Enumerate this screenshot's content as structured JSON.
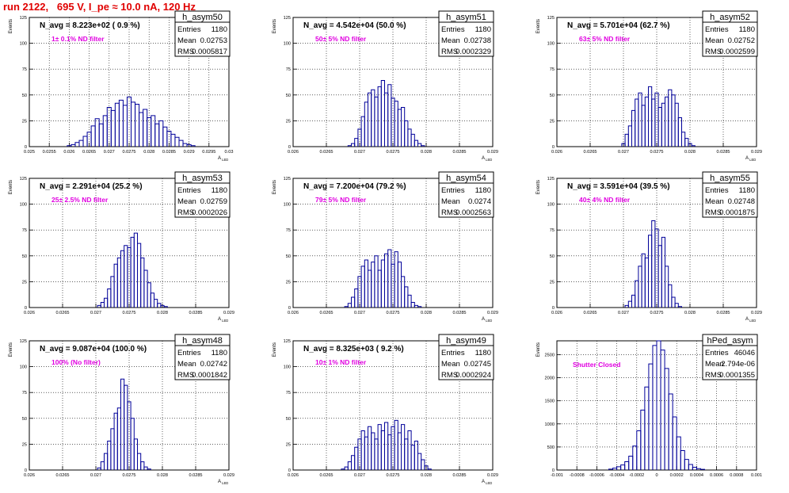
{
  "page": {
    "title": "run 2122,   695 V, I_pe ≈ 10.0 nA, 120 Hz"
  },
  "colors": {
    "title": "#e00000",
    "annotation": "#e000e0",
    "histogram": "#000099",
    "grid": "#000000"
  },
  "chart_data": [
    {
      "type": "histogram",
      "name": "h_asym50",
      "stats": {
        "entries": "1180",
        "mean": "0.02753",
        "rms": "0.0005817"
      },
      "n_avg_label": "N_avg = 8.223e+02 ( 0.9 %)",
      "annotation": "1± 0.1% ND filter",
      "ylabel": "Events",
      "xlabel": "A_LED",
      "xlim": [
        0.025,
        0.03
      ],
      "ylim": [
        0,
        125
      ],
      "xticks": [
        0.025,
        0.0255,
        0.026,
        0.0265,
        0.027,
        0.0275,
        0.028,
        0.0285,
        0.029,
        0.0295,
        0.03
      ],
      "xtick_labels": [
        "0.025",
        "0.0255",
        "0.026",
        "0.0265",
        "0.027",
        "0.0275",
        "0.028",
        "0.0285",
        "0.029",
        "0.0295",
        "0.03"
      ],
      "yticks": [
        0,
        25,
        50,
        75,
        100,
        125
      ],
      "ytick_labels": [
        "0",
        "25",
        "50",
        "75",
        "100",
        "125"
      ],
      "x": [
        0.026,
        0.0261,
        0.0262,
        0.0263,
        0.0264,
        0.0265,
        0.0266,
        0.0267,
        0.0268,
        0.0269,
        0.027,
        0.0271,
        0.0272,
        0.0273,
        0.0274,
        0.0275,
        0.0276,
        0.0277,
        0.0278,
        0.0279,
        0.028,
        0.0281,
        0.0282,
        0.0283,
        0.0284,
        0.0285,
        0.0286,
        0.0287,
        0.0288,
        0.0289,
        0.029,
        0.0291
      ],
      "y": [
        1,
        2,
        4,
        6,
        10,
        14,
        20,
        27,
        22,
        30,
        38,
        35,
        42,
        45,
        40,
        48,
        43,
        41,
        33,
        36,
        28,
        30,
        22,
        25,
        19,
        15,
        12,
        9,
        6,
        3,
        2,
        1
      ]
    },
    {
      "type": "histogram",
      "name": "h_asym51",
      "stats": {
        "entries": "1180",
        "mean": "0.02738",
        "rms": "0.0002329"
      },
      "n_avg_label": "N_avg = 4.542e+04 (50.0 %)",
      "annotation": "50± 5% ND filter",
      "ylabel": "Events",
      "xlabel": "A_LED",
      "xlim": [
        0.026,
        0.029
      ],
      "ylim": [
        0,
        125
      ],
      "xticks": [
        0.026,
        0.0265,
        0.027,
        0.0275,
        0.028,
        0.0285,
        0.029
      ],
      "xtick_labels": [
        "0.026",
        "0.0265",
        "0.027",
        "0.0275",
        "0.028",
        "0.0285",
        "0.029"
      ],
      "yticks": [
        0,
        25,
        50,
        75,
        100,
        125
      ],
      "ytick_labels": [
        "0",
        "25",
        "50",
        "75",
        "100",
        "125"
      ],
      "x": [
        0.02685,
        0.0269,
        0.02695,
        0.027,
        0.02705,
        0.0271,
        0.02715,
        0.0272,
        0.02725,
        0.0273,
        0.02735,
        0.0274,
        0.02745,
        0.0275,
        0.02755,
        0.0276,
        0.02765,
        0.0277,
        0.02775,
        0.0278,
        0.02785,
        0.0279,
        0.02795
      ],
      "y": [
        1,
        3,
        8,
        17,
        29,
        43,
        52,
        55,
        48,
        58,
        64,
        52,
        60,
        47,
        44,
        36,
        38,
        25,
        17,
        12,
        6,
        3,
        1
      ]
    },
    {
      "type": "histogram",
      "name": "h_asym52",
      "stats": {
        "entries": "1180",
        "mean": "0.02752",
        "rms": "0.0002599"
      },
      "n_avg_label": "N_avg = 5.701e+04 (62.7 %)",
      "annotation": "63± 5% ND filter",
      "ylabel": "Events",
      "xlabel": "A_LED",
      "xlim": [
        0.026,
        0.029
      ],
      "ylim": [
        0,
        125
      ],
      "xticks": [
        0.026,
        0.0265,
        0.027,
        0.0275,
        0.028,
        0.0285,
        0.029
      ],
      "xtick_labels": [
        "0.026",
        "0.0265",
        "0.027",
        "0.0275",
        "0.028",
        "0.0285",
        "0.029"
      ],
      "yticks": [
        0,
        25,
        50,
        75,
        100,
        125
      ],
      "ytick_labels": [
        "0",
        "25",
        "50",
        "75",
        "100",
        "125"
      ],
      "x": [
        0.027,
        0.02705,
        0.0271,
        0.02715,
        0.0272,
        0.02725,
        0.0273,
        0.02735,
        0.0274,
        0.02745,
        0.0275,
        0.02755,
        0.0276,
        0.02765,
        0.0277,
        0.02775,
        0.0278,
        0.02785,
        0.0279,
        0.02795,
        0.028,
        0.02805
      ],
      "y": [
        3,
        12,
        20,
        35,
        46,
        52,
        40,
        48,
        58,
        46,
        52,
        38,
        42,
        48,
        55,
        50,
        42,
        28,
        14,
        8,
        3,
        1
      ]
    },
    {
      "type": "histogram",
      "name": "h_asym53",
      "stats": {
        "entries": "1180",
        "mean": "0.02759",
        "rms": "0.0002026"
      },
      "n_avg_label": "N_avg = 2.291e+04 (25.2 %)",
      "annotation": "25± 2.5% ND filter",
      "ylabel": "Events",
      "xlabel": "A_LED",
      "xlim": [
        0.026,
        0.029
      ],
      "ylim": [
        0,
        125
      ],
      "xticks": [
        0.026,
        0.0265,
        0.027,
        0.0275,
        0.028,
        0.0285,
        0.029
      ],
      "xtick_labels": [
        "0.026",
        "0.0265",
        "0.027",
        "0.0275",
        "0.028",
        "0.0285",
        "0.029"
      ],
      "yticks": [
        0,
        25,
        50,
        75,
        100,
        125
      ],
      "ytick_labels": [
        "0",
        "25",
        "50",
        "75",
        "100",
        "125"
      ],
      "x": [
        0.02705,
        0.0271,
        0.02715,
        0.0272,
        0.02725,
        0.0273,
        0.02735,
        0.0274,
        0.02745,
        0.0275,
        0.02755,
        0.0276,
        0.02765,
        0.0277,
        0.02775,
        0.0278,
        0.02785,
        0.0279,
        0.02795,
        0.028,
        0.02805
      ],
      "y": [
        2,
        5,
        9,
        18,
        30,
        42,
        48,
        55,
        60,
        58,
        68,
        72,
        62,
        48,
        36,
        24,
        14,
        8,
        4,
        2,
        1
      ]
    },
    {
      "type": "histogram",
      "name": "h_asym54",
      "stats": {
        "entries": "1180",
        "mean": "0.0274",
        "rms": "0.0002563"
      },
      "n_avg_label": "N_avg = 7.200e+04 (79.2 %)",
      "annotation": "79± 5% ND filter",
      "ylabel": "Events",
      "xlabel": "A_LED",
      "xlim": [
        0.026,
        0.029
      ],
      "ylim": [
        0,
        125
      ],
      "xticks": [
        0.026,
        0.0265,
        0.027,
        0.0275,
        0.028,
        0.0285,
        0.029
      ],
      "xtick_labels": [
        "0.026",
        "0.0265",
        "0.027",
        "0.0275",
        "0.028",
        "0.0285",
        "0.029"
      ],
      "yticks": [
        0,
        25,
        50,
        75,
        100,
        125
      ],
      "ytick_labels": [
        "0",
        "25",
        "50",
        "75",
        "100",
        "125"
      ],
      "x": [
        0.0268,
        0.02685,
        0.0269,
        0.02695,
        0.027,
        0.02705,
        0.0271,
        0.02715,
        0.0272,
        0.02725,
        0.0273,
        0.02735,
        0.0274,
        0.02745,
        0.0275,
        0.02755,
        0.0276,
        0.02765,
        0.0277,
        0.02775,
        0.0278,
        0.02785,
        0.0279
      ],
      "y": [
        1,
        4,
        10,
        18,
        30,
        40,
        46,
        36,
        44,
        50,
        36,
        46,
        52,
        56,
        42,
        54,
        44,
        30,
        20,
        12,
        5,
        2,
        1
      ]
    },
    {
      "type": "histogram",
      "name": "h_asym55",
      "stats": {
        "entries": "1180",
        "mean": "0.02748",
        "rms": "0.0001875"
      },
      "n_avg_label": "N_avg = 3.591e+04 (39.5 %)",
      "annotation": "40± 4% ND filter",
      "ylabel": "Events",
      "xlabel": "A_LED",
      "xlim": [
        0.026,
        0.029
      ],
      "ylim": [
        0,
        125
      ],
      "xticks": [
        0.026,
        0.0265,
        0.027,
        0.0275,
        0.028,
        0.0285,
        0.029
      ],
      "xtick_labels": [
        "0.026",
        "0.0265",
        "0.027",
        "0.0275",
        "0.028",
        "0.0285",
        "0.029"
      ],
      "yticks": [
        0,
        25,
        50,
        75,
        100,
        125
      ],
      "ytick_labels": [
        "0",
        "25",
        "50",
        "75",
        "100",
        "125"
      ],
      "x": [
        0.02705,
        0.0271,
        0.02715,
        0.0272,
        0.02725,
        0.0273,
        0.02735,
        0.0274,
        0.02745,
        0.0275,
        0.02755,
        0.0276,
        0.02765,
        0.0277,
        0.02775,
        0.0278,
        0.02785
      ],
      "y": [
        2,
        6,
        12,
        26,
        40,
        52,
        48,
        70,
        84,
        76,
        60,
        68,
        40,
        22,
        10,
        4,
        1
      ]
    },
    {
      "type": "histogram",
      "name": "h_asym48",
      "stats": {
        "entries": "1180",
        "mean": "0.02742",
        "rms": "0.0001842"
      },
      "n_avg_label": "N_avg = 9.087e+04 (100.0 %)",
      "annotation": "100% (No filter)",
      "ylabel": "Events",
      "xlabel": "A_LED",
      "xlim": [
        0.026,
        0.029
      ],
      "ylim": [
        0,
        125
      ],
      "xticks": [
        0.026,
        0.0265,
        0.027,
        0.0275,
        0.028,
        0.0285,
        0.029
      ],
      "xtick_labels": [
        "0.026",
        "0.0265",
        "0.027",
        "0.0275",
        "0.028",
        "0.0285",
        "0.029"
      ],
      "yticks": [
        0,
        25,
        50,
        75,
        100,
        125
      ],
      "ytick_labels": [
        "0",
        "25",
        "50",
        "75",
        "100",
        "125"
      ],
      "x": [
        0.02705,
        0.0271,
        0.02715,
        0.0272,
        0.02725,
        0.0273,
        0.02735,
        0.0274,
        0.02745,
        0.0275,
        0.02755,
        0.0276,
        0.02765,
        0.0277,
        0.02775,
        0.0278
      ],
      "y": [
        2,
        8,
        16,
        28,
        40,
        55,
        60,
        88,
        82,
        66,
        50,
        30,
        16,
        8,
        3,
        1
      ]
    },
    {
      "type": "histogram",
      "name": "h_asym49",
      "stats": {
        "entries": "1180",
        "mean": "0.02745",
        "rms": "0.0002924"
      },
      "n_avg_label": "N_avg = 8.325e+03 ( 9.2 %)",
      "annotation": "10± 1% ND filter",
      "ylabel": "Events",
      "xlabel": "A_LED",
      "xlim": [
        0.026,
        0.029
      ],
      "ylim": [
        0,
        125
      ],
      "xticks": [
        0.026,
        0.0265,
        0.027,
        0.0275,
        0.028,
        0.0285,
        0.029
      ],
      "xtick_labels": [
        "0.026",
        "0.0265",
        "0.027",
        "0.0275",
        "0.028",
        "0.0285",
        "0.029"
      ],
      "yticks": [
        0,
        25,
        50,
        75,
        100,
        125
      ],
      "ytick_labels": [
        "0",
        "25",
        "50",
        "75",
        "100",
        "125"
      ],
      "x": [
        0.02675,
        0.0268,
        0.02685,
        0.0269,
        0.02695,
        0.027,
        0.02705,
        0.0271,
        0.02715,
        0.0272,
        0.02725,
        0.0273,
        0.02735,
        0.0274,
        0.02745,
        0.0275,
        0.02755,
        0.0276,
        0.02765,
        0.0277,
        0.02775,
        0.0278,
        0.02785,
        0.0279,
        0.02795,
        0.028,
        0.02805
      ],
      "y": [
        1,
        3,
        8,
        14,
        22,
        30,
        38,
        32,
        42,
        36,
        30,
        44,
        38,
        46,
        34,
        42,
        48,
        36,
        44,
        30,
        38,
        24,
        28,
        16,
        10,
        4,
        1
      ]
    },
    {
      "type": "histogram",
      "name": "hPed_asym",
      "stats": {
        "entries": "46046",
        "mean": "2.794e-06",
        "rms": "0.0001355"
      },
      "annotation": "Shutter Closed",
      "ylabel": "Events",
      "xlabel": "",
      "xlim": [
        -0.001,
        0.001
      ],
      "ylim": [
        0,
        2800
      ],
      "xticks": [
        -0.001,
        -0.0008,
        -0.0006,
        -0.0004,
        -0.0002,
        0,
        0.0002,
        0.0004,
        0.0006,
        0.0008,
        0.001
      ],
      "xtick_labels": [
        "-0.001",
        "-0.0008",
        "-0.0006",
        "-0.0004",
        "-0.0002",
        "0",
        "0.0002",
        "0.0004",
        "0.0006",
        "0.0008",
        "0.001"
      ],
      "yticks": [
        0,
        500,
        1000,
        1500,
        2000,
        2500
      ],
      "ytick_labels": [
        "0",
        "500",
        "1000",
        "1500",
        "2000",
        "2500"
      ],
      "x": [
        -0.00046,
        -0.00042,
        -0.00038,
        -0.00034,
        -0.0003,
        -0.00026,
        -0.00022,
        -0.00018,
        -0.00014,
        -0.0001,
        -6e-05,
        -2e-05,
        2e-05,
        6e-05,
        0.0001,
        0.00014,
        0.00018,
        0.00022,
        0.00026,
        0.0003,
        0.00034,
        0.00038,
        0.00042,
        0.00046
      ],
      "y": [
        20,
        40,
        70,
        110,
        180,
        300,
        520,
        850,
        1300,
        1800,
        2300,
        2700,
        2850,
        2600,
        2200,
        1650,
        1150,
        720,
        420,
        230,
        120,
        60,
        30,
        15
      ]
    }
  ]
}
